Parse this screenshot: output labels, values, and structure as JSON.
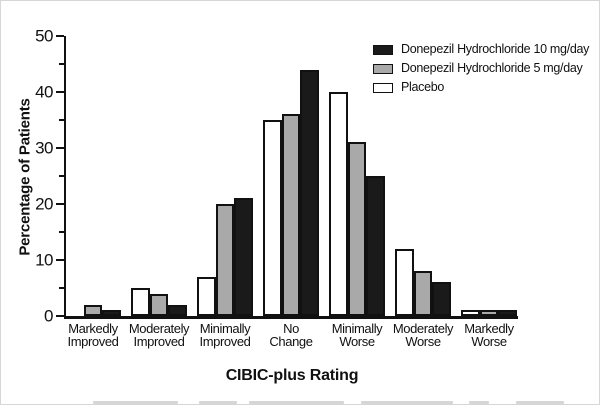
{
  "chart_data": {
    "type": "bar",
    "title": "",
    "xlabel": "CIBIC-plus Rating",
    "ylabel": "Percentage of Patients",
    "ylim": [
      0,
      50
    ],
    "y_major_ticks": [
      0,
      10,
      20,
      30,
      40,
      50
    ],
    "y_minor_ticks": [
      5,
      15,
      25,
      35,
      45
    ],
    "grid": false,
    "legend_position": "top-right",
    "categories": [
      "Markedly Improved",
      "Moderately Improved",
      "Minimally Improved",
      "No Change",
      "Minimally Worse",
      "Moderately Worse",
      "Markedly Worse"
    ],
    "category_label_lines": [
      [
        "Markedly",
        "Improved"
      ],
      [
        "Moderately",
        "Improved"
      ],
      [
        "Minimally",
        "Improved"
      ],
      [
        "No",
        "Change"
      ],
      [
        "Minimally",
        "Worse"
      ],
      [
        "Moderately",
        "Worse"
      ],
      [
        "Markedly",
        "Worse"
      ]
    ],
    "series": [
      {
        "name": "Placebo",
        "color": "#ffffff",
        "values": [
          0,
          5,
          7,
          35,
          40,
          12,
          1
        ]
      },
      {
        "name": "Donepezil Hydrochloride 5 mg/day",
        "color": "#a9a9a9",
        "values": [
          2,
          4,
          20,
          36,
          31,
          8,
          1
        ]
      },
      {
        "name": "Donepezil Hydrochloride 10 mg/day",
        "color": "#1a1a1a",
        "values": [
          1,
          2,
          21,
          44,
          25,
          6,
          1
        ]
      }
    ],
    "legend": [
      {
        "label": "Donepezil Hydrochloride 10 mg/day",
        "color": "#1a1a1a"
      },
      {
        "label": "Donepezil Hydrochloride 5 mg/day",
        "color": "#a9a9a9"
      },
      {
        "label": "Placebo",
        "color": "#ffffff"
      }
    ],
    "axis_color": "#111111"
  }
}
